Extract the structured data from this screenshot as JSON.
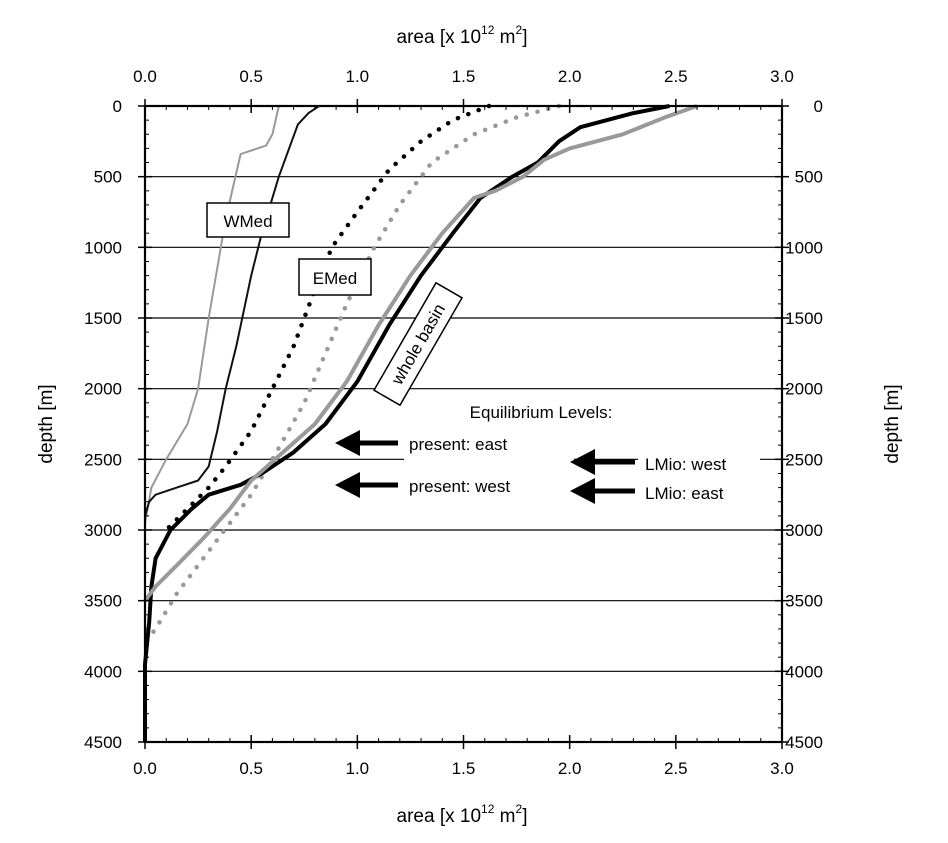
{
  "chart_data": {
    "type": "line",
    "title": "",
    "xlabel": "area [x 10",
    "xlabel_exp": "12",
    "xlabel_unit": " m",
    "xlabel_unit_exp": "2",
    "xlabel_close": "]",
    "ylabel": "depth [m]",
    "xlim": [
      0,
      3.0
    ],
    "ylim": [
      4500,
      0
    ],
    "x_ticks": [
      "0.0",
      "0.5",
      "1.0",
      "1.5",
      "2.0",
      "2.5",
      "3.0"
    ],
    "x_tick_values": [
      0,
      0.5,
      1.0,
      1.5,
      2.0,
      2.5,
      3.0
    ],
    "y_ticks": [
      "0",
      "500",
      "1000",
      "1500",
      "2000",
      "2500",
      "3000",
      "3500",
      "4000",
      "4500"
    ],
    "y_tick_values": [
      0,
      500,
      1000,
      1500,
      2000,
      2500,
      3000,
      3500,
      4000,
      4500
    ],
    "gridlines_y": [
      500,
      1000,
      1500,
      2000,
      2500,
      3000,
      3500,
      4000
    ],
    "series": [
      {
        "name": "",
        "color": "#999999",
        "style": "solid-thin",
        "points": [
          [
            0.63,
            0
          ],
          [
            0.6,
            200
          ],
          [
            0.57,
            280
          ],
          [
            0.45,
            340
          ],
          [
            0.38,
            800
          ],
          [
            0.3,
            1500
          ],
          [
            0.25,
            2000
          ],
          [
            0.2,
            2250
          ],
          [
            0.1,
            2500
          ],
          [
            0.03,
            2700
          ],
          [
            0.0,
            2950
          ]
        ]
      },
      {
        "name": "",
        "color": "#111111",
        "style": "solid-thin",
        "points": [
          [
            0.82,
            0
          ],
          [
            0.77,
            50
          ],
          [
            0.72,
            130
          ],
          [
            0.63,
            500
          ],
          [
            0.55,
            900
          ],
          [
            0.5,
            1200
          ],
          [
            0.43,
            1700
          ],
          [
            0.38,
            2000
          ],
          [
            0.34,
            2300
          ],
          [
            0.3,
            2550
          ],
          [
            0.25,
            2650
          ],
          [
            0.15,
            2700
          ],
          [
            0.05,
            2750
          ],
          [
            0.02,
            2800
          ],
          [
            0.0,
            2900
          ]
        ]
      },
      {
        "name": "",
        "color": "#000000",
        "style": "dotted",
        "points": [
          [
            1.62,
            0
          ],
          [
            1.45,
            100
          ],
          [
            1.3,
            250
          ],
          [
            1.15,
            450
          ],
          [
            1.0,
            750
          ],
          [
            0.88,
            1000
          ],
          [
            0.8,
            1300
          ],
          [
            0.7,
            1700
          ],
          [
            0.6,
            2000
          ],
          [
            0.5,
            2300
          ],
          [
            0.38,
            2550
          ],
          [
            0.3,
            2700
          ],
          [
            0.2,
            2850
          ],
          [
            0.1,
            3000
          ]
        ]
      },
      {
        "name": "",
        "color": "#999999",
        "style": "dotted",
        "points": [
          [
            1.95,
            0
          ],
          [
            1.75,
            80
          ],
          [
            1.55,
            200
          ],
          [
            1.35,
            400
          ],
          [
            1.2,
            700
          ],
          [
            1.08,
            1000
          ],
          [
            0.95,
            1400
          ],
          [
            0.85,
            1750
          ],
          [
            0.75,
            2100
          ],
          [
            0.6,
            2500
          ],
          [
            0.5,
            2750
          ],
          [
            0.3,
            3150
          ],
          [
            0.15,
            3450
          ],
          [
            0.05,
            3700
          ],
          [
            0.0,
            3800
          ]
        ]
      },
      {
        "name": "",
        "color": "#000000",
        "style": "solid-thick",
        "points": [
          [
            2.47,
            0
          ],
          [
            2.3,
            50
          ],
          [
            2.05,
            150
          ],
          [
            1.95,
            250
          ],
          [
            1.85,
            400
          ],
          [
            1.73,
            500
          ],
          [
            1.58,
            650
          ],
          [
            1.45,
            900
          ],
          [
            1.3,
            1200
          ],
          [
            1.15,
            1550
          ],
          [
            1.0,
            1950
          ],
          [
            0.85,
            2250
          ],
          [
            0.7,
            2450
          ],
          [
            0.55,
            2600
          ],
          [
            0.45,
            2680
          ],
          [
            0.3,
            2750
          ],
          [
            0.22,
            2850
          ],
          [
            0.12,
            3000
          ],
          [
            0.05,
            3200
          ],
          [
            0.03,
            3400
          ],
          [
            0.02,
            3650
          ],
          [
            0.0,
            3950
          ],
          [
            0.0,
            4500
          ]
        ]
      },
      {
        "name": "",
        "color": "#999999",
        "style": "solid-thick",
        "points": [
          [
            2.6,
            0
          ],
          [
            2.45,
            80
          ],
          [
            2.25,
            200
          ],
          [
            2.0,
            300
          ],
          [
            1.88,
            380
          ],
          [
            1.78,
            500
          ],
          [
            1.65,
            600
          ],
          [
            1.55,
            650
          ],
          [
            1.4,
            900
          ],
          [
            1.25,
            1200
          ],
          [
            1.1,
            1550
          ],
          [
            0.95,
            1950
          ],
          [
            0.8,
            2250
          ],
          [
            0.65,
            2450
          ],
          [
            0.5,
            2650
          ],
          [
            0.4,
            2850
          ],
          [
            0.28,
            3050
          ],
          [
            0.15,
            3250
          ],
          [
            0.05,
            3400
          ],
          [
            0.0,
            3500
          ]
        ]
      }
    ],
    "labels": {
      "wmed": "WMed",
      "emed": "EMed",
      "whole": "whole basin",
      "eq_title": "Equilibrium Levels:",
      "present_east": "present: east",
      "present_west": "present: west",
      "lmio_west": "LMio: west",
      "lmio_east": "LMio: east"
    }
  }
}
